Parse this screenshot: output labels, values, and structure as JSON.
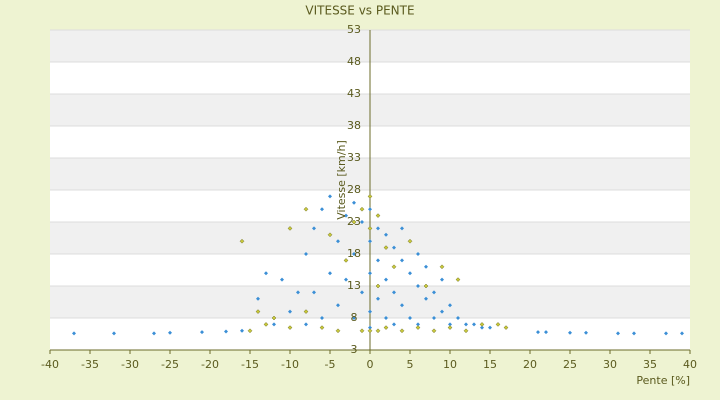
{
  "chart_data": {
    "type": "scatter",
    "title": "VITESSE vs PENTE",
    "xlabel": "Pente [%]",
    "ylabel": "Vitesse [km/h]",
    "xlim": [
      -40,
      40
    ],
    "ylim": [
      3,
      53
    ],
    "xticks": [
      -40,
      -35,
      -30,
      -25,
      -20,
      -15,
      -10,
      -5,
      0,
      5,
      10,
      15,
      20,
      25,
      30,
      35,
      40
    ],
    "yticks": [
      3,
      8,
      13,
      18,
      23,
      28,
      33,
      38,
      43,
      48,
      53
    ],
    "grid": true,
    "series": [
      {
        "name": "blue",
        "color": "#3b8fd6",
        "x": [
          -37,
          -32,
          -27,
          -25,
          -21,
          -18,
          -16,
          21,
          22,
          25,
          27,
          31,
          33,
          37,
          39,
          -12,
          -10,
          -9,
          -8,
          -7,
          -6,
          -5,
          -5,
          -4,
          -4,
          -3,
          -3,
          -2,
          -2,
          -2,
          -1,
          -1,
          0,
          0,
          0,
          0,
          0,
          1,
          1,
          1,
          2,
          2,
          2,
          3,
          3,
          3,
          4,
          4,
          5,
          5,
          6,
          6,
          7,
          8,
          8,
          9,
          10,
          10,
          11,
          12,
          13,
          14,
          15,
          -6,
          -7,
          -8,
          -11,
          -14,
          -13,
          4,
          6,
          7,
          9
        ],
        "values": [
          5.6,
          5.6,
          5.6,
          5.7,
          5.8,
          5.9,
          6,
          5.8,
          5.8,
          5.7,
          5.7,
          5.6,
          5.6,
          5.6,
          5.6,
          7,
          9,
          12,
          18,
          22,
          25,
          27,
          15,
          20,
          10,
          24,
          14,
          26,
          18,
          8,
          23,
          12,
          25,
          20,
          15,
          9,
          6.5,
          22,
          17,
          11,
          21,
          14,
          8,
          19,
          12,
          7,
          17,
          10,
          15,
          8,
          13,
          7,
          11,
          12,
          8,
          9,
          10,
          7,
          8,
          7,
          7,
          6.5,
          6.5,
          8,
          12,
          7,
          14,
          11,
          15,
          22,
          18,
          16,
          14
        ]
      },
      {
        "name": "yellow",
        "color": "#c9c93a",
        "x": [
          -16,
          -15,
          -14,
          -13,
          -12,
          -10,
          -10,
          -8,
          -8,
          -6,
          -5,
          -4,
          -3,
          -2,
          -1,
          -1,
          0,
          0,
          0,
          1,
          1,
          1,
          2,
          2,
          3,
          4,
          5,
          6,
          7,
          8,
          9,
          10,
          11,
          12,
          14,
          16,
          17
        ],
        "values": [
          20,
          6,
          9,
          7,
          8,
          22,
          6.5,
          25,
          9,
          6.5,
          21,
          6,
          17,
          23,
          25,
          6,
          27,
          22,
          6,
          24,
          13,
          6,
          19,
          6.5,
          16,
          6,
          20,
          6.5,
          13,
          6,
          16,
          6.5,
          14,
          6,
          7,
          7,
          6.5
        ]
      }
    ]
  }
}
